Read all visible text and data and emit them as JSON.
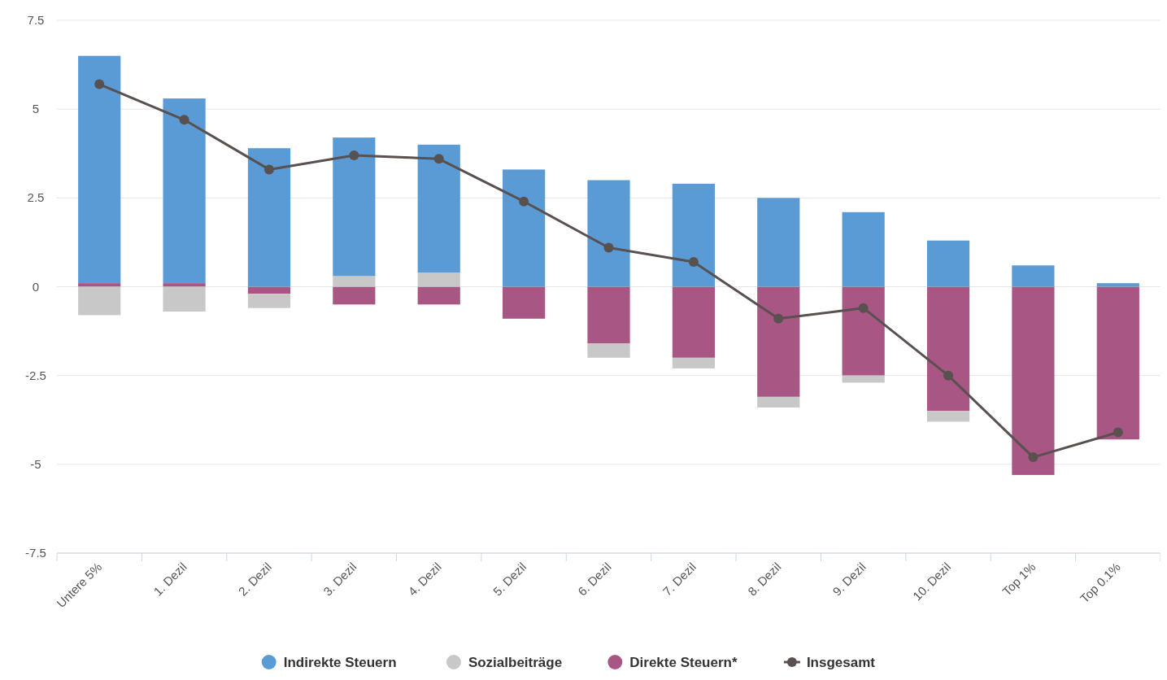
{
  "chart_data": {
    "type": "bar",
    "stacked": true,
    "categories": [
      "Untere 5%",
      "1. Dezil",
      "2. Dezil",
      "3. Dezil",
      "4. Dezil",
      "5. Dezil",
      "6. Dezil",
      "7. Dezil",
      "8. Dezil",
      "9. Dezil",
      "10. Dezil",
      "Top 1%",
      "Top 0.1%"
    ],
    "series": [
      {
        "name": "Direkte Steuern*",
        "color": "#a85683",
        "values": [
          0.1,
          0.1,
          -0.2,
          -0.5,
          -0.5,
          -0.9,
          -1.6,
          -2.0,
          -3.1,
          -2.5,
          -3.5,
          -5.3,
          -4.3
        ]
      },
      {
        "name": "Sozialbeiträge",
        "color": "#c8c8c8",
        "values": [
          -0.8,
          -0.7,
          -0.4,
          0.3,
          0.4,
          0,
          -0.4,
          -0.3,
          -0.3,
          -0.2,
          -0.3,
          0,
          0
        ]
      },
      {
        "name": "Indirekte Steuern",
        "color": "#5b9bd5",
        "values": [
          6.4,
          5.2,
          3.9,
          3.9,
          3.6,
          3.3,
          3.0,
          2.9,
          2.5,
          2.1,
          1.3,
          0.6,
          0.1
        ]
      },
      {
        "name": "Insgesamt",
        "type": "line",
        "color": "#595050",
        "marker": "circle",
        "values": [
          5.7,
          4.7,
          3.3,
          3.7,
          3.6,
          2.4,
          1.1,
          0.7,
          -0.9,
          -0.6,
          -2.5,
          -4.8,
          -4.1
        ]
      }
    ],
    "ylim": [
      -7.5,
      7.5
    ],
    "yticks": [
      -7.5,
      -5,
      -2.5,
      0,
      2.5,
      5,
      7.5
    ],
    "grid": "y",
    "legend": "bottom"
  }
}
